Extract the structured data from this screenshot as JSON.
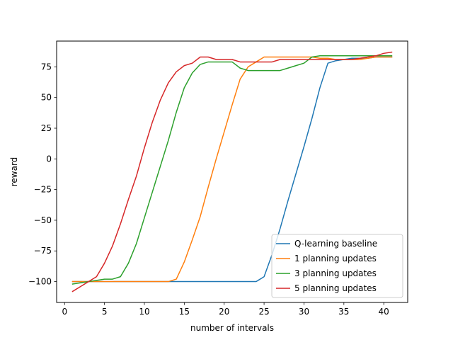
{
  "chart_data": {
    "type": "line",
    "title": "",
    "xlabel": "number of intervals",
    "ylabel": "reward",
    "xlim": [
      -1,
      43
    ],
    "ylim": [
      -117,
      96
    ],
    "xticks": [
      0,
      5,
      10,
      15,
      20,
      25,
      30,
      35,
      40
    ],
    "yticks": [
      -100,
      -75,
      -50,
      -25,
      0,
      25,
      50,
      75
    ],
    "grid": false,
    "legend_position": "lower-right",
    "series": [
      {
        "name": "Q-learning baseline",
        "color": "#1f77b4",
        "x": [
          1,
          2,
          3,
          4,
          5,
          6,
          7,
          8,
          9,
          10,
          11,
          12,
          13,
          14,
          15,
          16,
          17,
          18,
          19,
          20,
          21,
          22,
          23,
          24,
          25,
          26,
          27,
          28,
          29,
          30,
          31,
          32,
          33,
          34,
          35,
          36,
          37,
          38,
          39,
          40,
          41
        ],
        "y": [
          -100,
          -100,
          -100,
          -100,
          -100,
          -100,
          -100,
          -100,
          -100,
          -100,
          -100,
          -100,
          -100,
          -100,
          -100,
          -100,
          -100,
          -100,
          -100,
          -100,
          -100,
          -100,
          -100,
          -100,
          -96,
          -78,
          -57,
          -34,
          -12,
          10,
          33,
          58,
          78,
          80,
          81,
          82,
          82,
          82,
          83,
          83,
          83
        ]
      },
      {
        "name": "1 planning updates",
        "color": "#ff7f0e",
        "x": [
          1,
          2,
          3,
          4,
          5,
          6,
          7,
          8,
          9,
          10,
          11,
          12,
          13,
          14,
          15,
          16,
          17,
          18,
          19,
          20,
          21,
          22,
          23,
          24,
          25,
          26,
          27,
          28,
          29,
          30,
          31,
          32,
          33,
          34,
          35,
          36,
          37,
          38,
          39,
          40,
          41
        ],
        "y": [
          -100,
          -100,
          -100,
          -100,
          -100,
          -100,
          -100,
          -100,
          -100,
          -100,
          -100,
          -100,
          -100,
          -98,
          -84,
          -66,
          -47,
          -23,
          0,
          22,
          44,
          65,
          75,
          79,
          83,
          83,
          83,
          83,
          83,
          83,
          83,
          82,
          82,
          81,
          81,
          81,
          81,
          82,
          83,
          83,
          83
        ]
      },
      {
        "name": "3 planning updates",
        "color": "#2ca02c",
        "x": [
          1,
          2,
          3,
          4,
          5,
          6,
          7,
          8,
          9,
          10,
          11,
          12,
          13,
          14,
          15,
          16,
          17,
          18,
          19,
          20,
          21,
          22,
          23,
          24,
          25,
          26,
          27,
          28,
          29,
          30,
          31,
          32,
          33,
          34,
          35,
          36,
          37,
          38,
          39,
          40,
          41
        ],
        "y": [
          -102,
          -101,
          -100,
          -99,
          -98,
          -98,
          -96,
          -85,
          -69,
          -48,
          -27,
          -6,
          15,
          38,
          58,
          70,
          77,
          79,
          79,
          79,
          79,
          74,
          72,
          72,
          72,
          72,
          72,
          74,
          76,
          78,
          83,
          84,
          84,
          84,
          84,
          84,
          84,
          84,
          84,
          84,
          84
        ]
      },
      {
        "name": "5 planning updates",
        "color": "#d62728",
        "x": [
          1,
          2,
          3,
          4,
          5,
          6,
          7,
          8,
          9,
          10,
          11,
          12,
          13,
          14,
          15,
          16,
          17,
          18,
          19,
          20,
          21,
          22,
          23,
          24,
          25,
          26,
          27,
          28,
          29,
          30,
          31,
          32,
          33,
          34,
          35,
          36,
          37,
          38,
          39,
          40,
          41
        ],
        "y": [
          -108,
          -104,
          -100,
          -96,
          -85,
          -71,
          -53,
          -33,
          -14,
          9,
          30,
          48,
          62,
          71,
          76,
          78,
          83,
          83,
          81,
          81,
          81,
          79,
          79,
          79,
          79,
          79,
          81,
          81,
          81,
          81,
          81,
          81,
          81,
          81,
          81,
          81,
          82,
          83,
          84,
          86,
          87
        ]
      }
    ]
  }
}
